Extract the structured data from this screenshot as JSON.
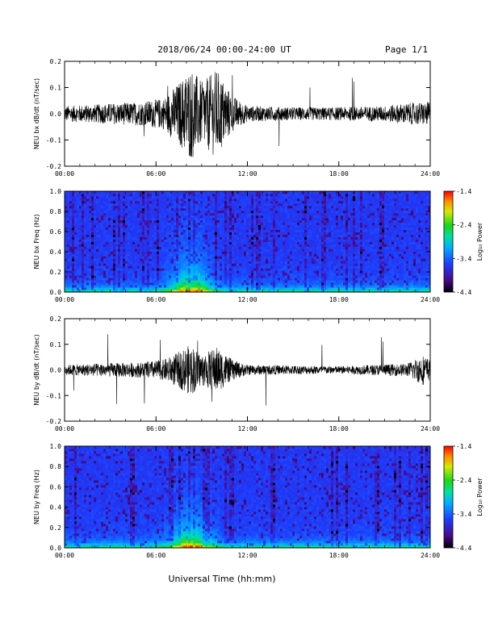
{
  "header": {
    "title": "2018/06/24  00:00-24:00 UT",
    "page": "Page 1/1"
  },
  "xlabel": "Universal Time (hh:mm)",
  "chart_data": [
    {
      "type": "line",
      "ylabel": "NEU bx dB/dt (nT/sec)",
      "x_ticks": [
        "00:00",
        "06:00",
        "12:00",
        "18:00",
        "24:00"
      ],
      "y_ticks": [
        "-0.2",
        "-0.1",
        "0.0",
        "0.1",
        "0.2"
      ],
      "ylim": [
        -0.2,
        0.2
      ],
      "xlim_hours": [
        0,
        24
      ],
      "note_series": "high-frequency noisy trace centered near 0, largest bursts ~07:00-11:00 UT",
      "envelope": [
        {
          "hour": 0,
          "amp": 0.03
        },
        {
          "hour": 2,
          "amp": 0.035
        },
        {
          "hour": 3,
          "amp": 0.04
        },
        {
          "hour": 5,
          "amp": 0.045
        },
        {
          "hour": 6.5,
          "amp": 0.06
        },
        {
          "hour": 7.5,
          "amp": 0.12
        },
        {
          "hour": 8.3,
          "amp": 0.18
        },
        {
          "hour": 9,
          "amp": 0.12
        },
        {
          "hour": 10,
          "amp": 0.17
        },
        {
          "hour": 11,
          "amp": 0.07
        },
        {
          "hour": 12,
          "amp": 0.03
        },
        {
          "hour": 15,
          "amp": 0.025
        },
        {
          "hour": 18,
          "amp": 0.025
        },
        {
          "hour": 21,
          "amp": 0.03
        },
        {
          "hour": 22.5,
          "amp": 0.04
        },
        {
          "hour": 24,
          "amp": 0.045
        }
      ]
    },
    {
      "type": "heatmap",
      "ylabel": "NEU bx Freq (Hz)",
      "x_ticks": [
        "00:00",
        "06:00",
        "12:00",
        "18:00",
        "24:00"
      ],
      "y_ticks": [
        "0.0",
        "0.2",
        "0.4",
        "0.6",
        "0.8",
        "1.0"
      ],
      "ylim": [
        0,
        1.0
      ],
      "colorbar": {
        "label": "Log₁₀ Power",
        "ticks": [
          "-1.4",
          "-2.4",
          "-3.4",
          "-4.4"
        ],
        "range": [
          -4.4,
          -1.4
        ]
      },
      "hotspot_hour": 8.3
    },
    {
      "type": "line",
      "ylabel": "NEU by dB/dt (nT/sec)",
      "x_ticks": [
        "00:00",
        "06:00",
        "12:00",
        "18:00",
        "24:00"
      ],
      "y_ticks": [
        "-0.2",
        "-0.1",
        "0.0",
        "0.1",
        "0.2"
      ],
      "ylim": [
        -0.2,
        0.2
      ],
      "xlim_hours": [
        0,
        24
      ],
      "envelope": [
        {
          "hour": 0,
          "amp": 0.02
        },
        {
          "hour": 2,
          "amp": 0.025
        },
        {
          "hour": 5,
          "amp": 0.03
        },
        {
          "hour": 6.5,
          "amp": 0.04
        },
        {
          "hour": 7.5,
          "amp": 0.07
        },
        {
          "hour": 8.3,
          "amp": 0.1
        },
        {
          "hour": 9,
          "amp": 0.06
        },
        {
          "hour": 10,
          "amp": 0.09
        },
        {
          "hour": 11,
          "amp": 0.04
        },
        {
          "hour": 12,
          "amp": 0.02
        },
        {
          "hour": 18,
          "amp": 0.015
        },
        {
          "hour": 22.5,
          "amp": 0.025
        },
        {
          "hour": 23.5,
          "amp": 0.06
        },
        {
          "hour": 24,
          "amp": 0.04
        }
      ]
    },
    {
      "type": "heatmap",
      "ylabel": "NEU by Freq (Hz)",
      "x_ticks": [
        "00:00",
        "06:00",
        "12:00",
        "18:00",
        "24:00"
      ],
      "y_ticks": [
        "0.0",
        "0.2",
        "0.4",
        "0.6",
        "0.8",
        "1.0"
      ],
      "ylim": [
        0,
        1.0
      ],
      "colorbar": {
        "label": "Log₁₀ Power",
        "ticks": [
          "-1.4",
          "-2.4",
          "-3.4",
          "-4.4"
        ],
        "range": [
          -4.4,
          -1.4
        ]
      },
      "hotspot_hour": 8.3
    }
  ]
}
